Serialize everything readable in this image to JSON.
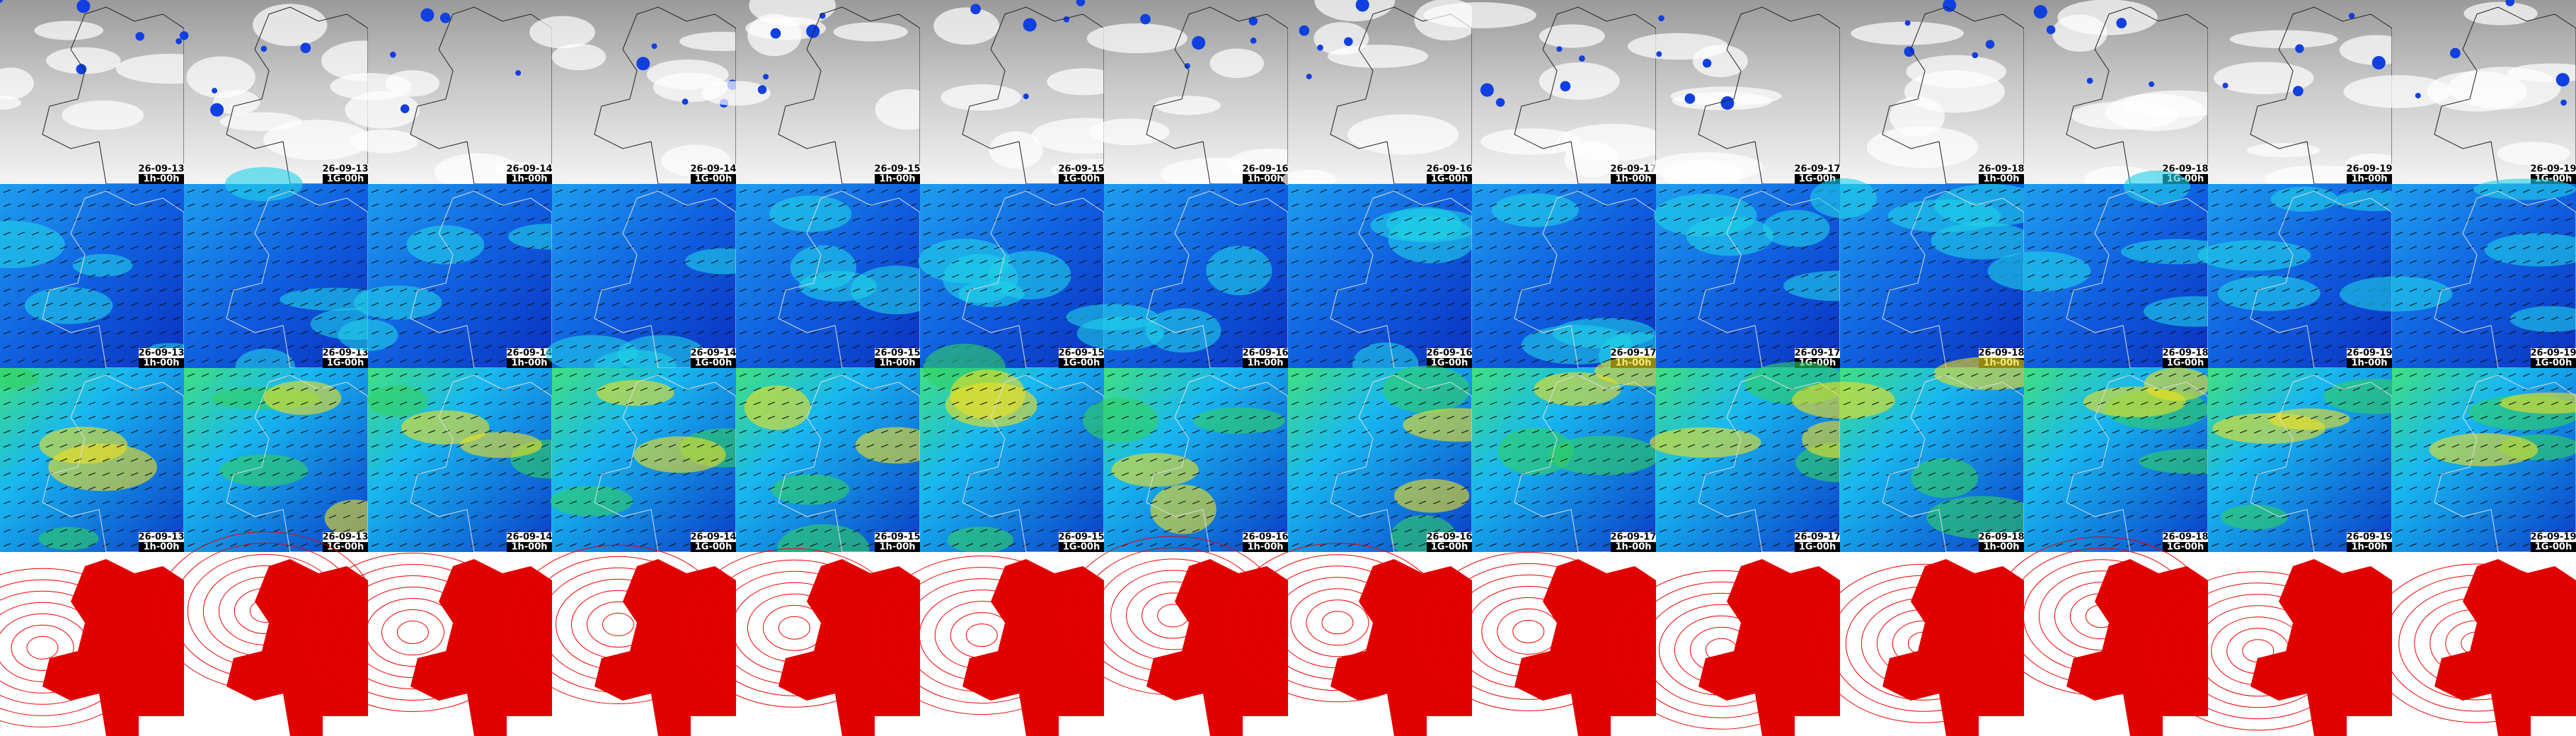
{
  "columns": [
    {
      "date": "26-09-13",
      "time": "1h-00h"
    },
    {
      "date": "26-09-13",
      "time": "1G-00h"
    },
    {
      "date": "26-09-14",
      "time": "1h-00h"
    },
    {
      "date": "26-09-14",
      "time": "1G-00h"
    },
    {
      "date": "26-09-15",
      "time": "1h-00h"
    },
    {
      "date": "26-09-15",
      "time": "1G-00h"
    },
    {
      "date": "26-09-16",
      "time": "1h-00h"
    },
    {
      "date": "26-09-16",
      "time": "1G-00h"
    },
    {
      "date": "26-09-17",
      "time": "1h-00h"
    },
    {
      "date": "26-09-17",
      "time": "1G-00h"
    },
    {
      "date": "26-09-18",
      "time": "1h-00h"
    },
    {
      "date": "26-09-18",
      "time": "1G-00h"
    },
    {
      "date": "26-09-19",
      "time": "1h-00h"
    },
    {
      "date": "26-09-19",
      "time": "1G-00h"
    }
  ]
}
